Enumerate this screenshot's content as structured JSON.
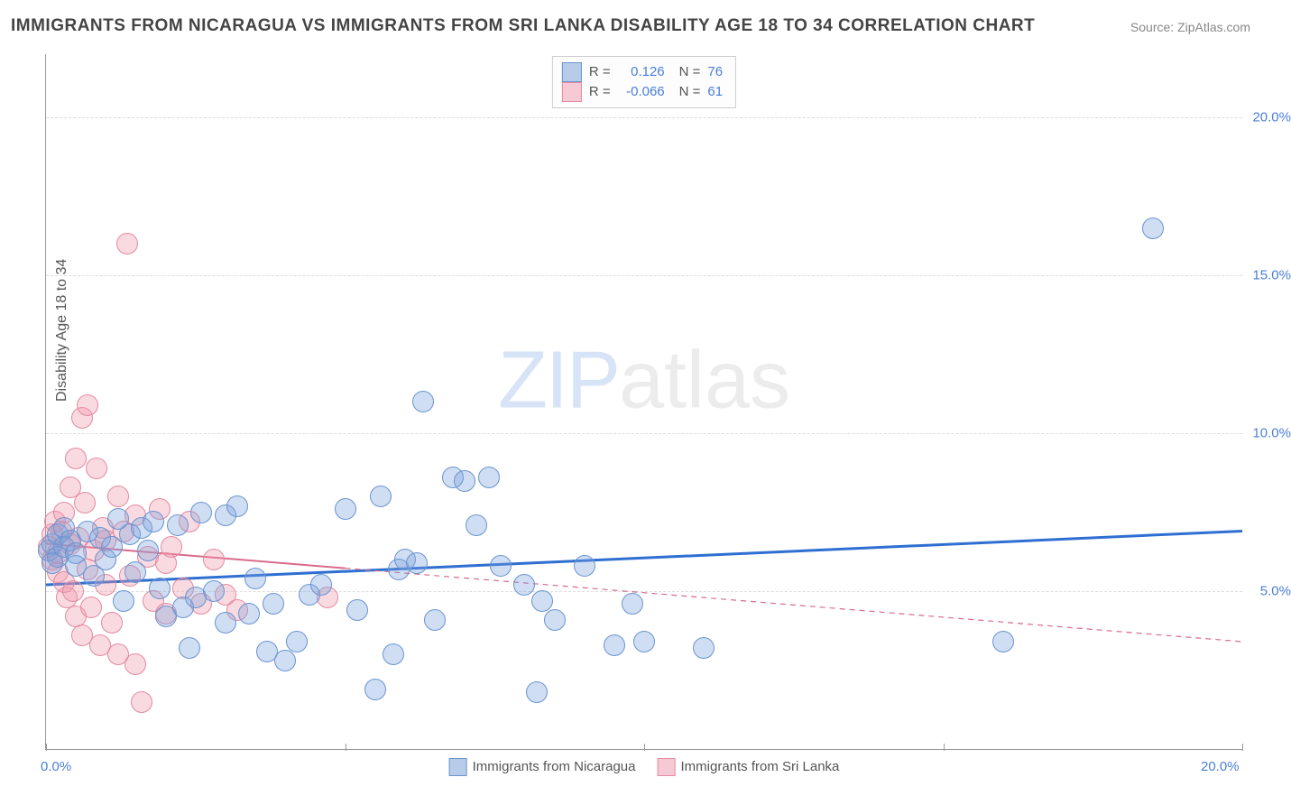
{
  "title": "IMMIGRANTS FROM NICARAGUA VS IMMIGRANTS FROM SRI LANKA DISABILITY AGE 18 TO 34 CORRELATION CHART",
  "source_label": "Source: ZipAtlas.com",
  "ylabel": "Disability Age 18 to 34",
  "watermark_bold": "ZIP",
  "watermark_rest": "atlas",
  "chart": {
    "type": "scatter",
    "xlim": [
      0,
      20
    ],
    "ylim": [
      0,
      22
    ],
    "x_ticks": [
      0,
      5,
      10,
      15,
      20
    ],
    "y_gridlines": [
      5,
      10,
      15,
      20
    ],
    "x_axis_labels": [
      {
        "val": 0,
        "text": "0.0%"
      },
      {
        "val": 20,
        "text": "20.0%"
      }
    ],
    "y_axis_labels": [
      {
        "val": 5,
        "text": "5.0%"
      },
      {
        "val": 10,
        "text": "10.0%"
      },
      {
        "val": 15,
        "text": "15.0%"
      },
      {
        "val": 20,
        "text": "20.0%"
      }
    ],
    "background_color": "#ffffff",
    "grid_color": "#dddddd",
    "series": [
      {
        "name": "Immigrants from Nicaragua",
        "fill_color": "rgba(120,160,220,0.35)",
        "stroke_color": "#6a94d0",
        "swatch_fill": "#b7cce9",
        "swatch_border": "#6a94d0",
        "R": "0.126",
        "N": "76",
        "marker_radius": 11,
        "trend": {
          "x1": 0,
          "y1": 5.2,
          "x2": 20,
          "y2": 6.9,
          "color": "#2e6fd1",
          "width": 3,
          "dash": "none"
        },
        "points": [
          [
            0.05,
            6.3
          ],
          [
            0.1,
            6.5
          ],
          [
            0.1,
            5.9
          ],
          [
            0.2,
            6.1
          ],
          [
            0.2,
            6.8
          ],
          [
            0.3,
            7.0
          ],
          [
            0.3,
            6.4
          ],
          [
            0.4,
            6.6
          ],
          [
            0.5,
            6.2
          ],
          [
            0.5,
            5.8
          ],
          [
            0.7,
            6.9
          ],
          [
            0.8,
            5.5
          ],
          [
            0.9,
            6.7
          ],
          [
            1.0,
            6.0
          ],
          [
            1.1,
            6.4
          ],
          [
            1.2,
            7.3
          ],
          [
            1.3,
            4.7
          ],
          [
            1.4,
            6.8
          ],
          [
            1.5,
            5.6
          ],
          [
            1.6,
            7.0
          ],
          [
            1.7,
            6.3
          ],
          [
            1.8,
            7.2
          ],
          [
            1.9,
            5.1
          ],
          [
            2.0,
            4.2
          ],
          [
            2.2,
            7.1
          ],
          [
            2.3,
            4.5
          ],
          [
            2.4,
            3.2
          ],
          [
            2.5,
            4.8
          ],
          [
            2.6,
            7.5
          ],
          [
            2.8,
            5.0
          ],
          [
            3.0,
            7.4
          ],
          [
            3.0,
            4.0
          ],
          [
            3.2,
            7.7
          ],
          [
            3.4,
            4.3
          ],
          [
            3.5,
            5.4
          ],
          [
            3.7,
            3.1
          ],
          [
            3.8,
            4.6
          ],
          [
            4.0,
            2.8
          ],
          [
            4.2,
            3.4
          ],
          [
            4.4,
            4.9
          ],
          [
            4.6,
            5.2
          ],
          [
            5.0,
            7.6
          ],
          [
            5.2,
            4.4
          ],
          [
            5.5,
            1.9
          ],
          [
            5.6,
            8.0
          ],
          [
            5.8,
            3.0
          ],
          [
            5.9,
            5.7
          ],
          [
            6.0,
            6.0
          ],
          [
            6.2,
            5.9
          ],
          [
            6.3,
            11.0
          ],
          [
            6.5,
            4.1
          ],
          [
            6.8,
            8.6
          ],
          [
            7.0,
            8.5
          ],
          [
            7.2,
            7.1
          ],
          [
            7.4,
            8.6
          ],
          [
            7.6,
            5.8
          ],
          [
            8.0,
            5.2
          ],
          [
            8.2,
            1.8
          ],
          [
            8.3,
            4.7
          ],
          [
            8.5,
            4.1
          ],
          [
            9.0,
            5.8
          ],
          [
            9.5,
            3.3
          ],
          [
            9.8,
            4.6
          ],
          [
            10.0,
            3.4
          ],
          [
            11.0,
            3.2
          ],
          [
            16.0,
            3.4
          ],
          [
            18.5,
            16.5
          ]
        ]
      },
      {
        "name": "Immigrants from Sri Lanka",
        "fill_color": "rgba(240,150,170,0.35)",
        "stroke_color": "#e38aa0",
        "swatch_fill": "#f6cad4",
        "swatch_border": "#e38aa0",
        "R": "-0.066",
        "N": "61",
        "marker_radius": 11,
        "trend": {
          "x1": 0,
          "y1": 6.5,
          "x2": 20,
          "y2": 3.4,
          "color": "#d96a8a",
          "width": 2,
          "dash": "6,5",
          "solid_until_x": 5
        },
        "points": [
          [
            0.05,
            6.4
          ],
          [
            0.1,
            6.0
          ],
          [
            0.1,
            6.8
          ],
          [
            0.15,
            7.2
          ],
          [
            0.2,
            5.6
          ],
          [
            0.2,
            6.2
          ],
          [
            0.25,
            6.9
          ],
          [
            0.3,
            5.3
          ],
          [
            0.3,
            7.5
          ],
          [
            0.35,
            4.8
          ],
          [
            0.4,
            6.5
          ],
          [
            0.4,
            8.3
          ],
          [
            0.45,
            5.0
          ],
          [
            0.5,
            9.2
          ],
          [
            0.5,
            4.2
          ],
          [
            0.55,
            6.7
          ],
          [
            0.6,
            10.5
          ],
          [
            0.6,
            3.6
          ],
          [
            0.65,
            7.8
          ],
          [
            0.7,
            5.7
          ],
          [
            0.7,
            10.9
          ],
          [
            0.75,
            4.5
          ],
          [
            0.8,
            6.3
          ],
          [
            0.85,
            8.9
          ],
          [
            0.9,
            3.3
          ],
          [
            0.95,
            7.0
          ],
          [
            1.0,
            5.2
          ],
          [
            1.0,
            6.6
          ],
          [
            1.1,
            4.0
          ],
          [
            1.2,
            8.0
          ],
          [
            1.2,
            3.0
          ],
          [
            1.3,
            6.9
          ],
          [
            1.35,
            16.0
          ],
          [
            1.4,
            5.5
          ],
          [
            1.5,
            7.4
          ],
          [
            1.5,
            2.7
          ],
          [
            1.6,
            1.5
          ],
          [
            1.7,
            6.1
          ],
          [
            1.8,
            4.7
          ],
          [
            1.9,
            7.6
          ],
          [
            2.0,
            5.9
          ],
          [
            2.0,
            4.3
          ],
          [
            2.1,
            6.4
          ],
          [
            2.3,
            5.1
          ],
          [
            2.4,
            7.2
          ],
          [
            2.6,
            4.6
          ],
          [
            2.8,
            6.0
          ],
          [
            3.0,
            4.9
          ],
          [
            3.2,
            4.4
          ],
          [
            4.7,
            4.8
          ]
        ]
      }
    ],
    "legend_bottom": [
      {
        "label": "Immigrants from Nicaragua",
        "fill": "#b7cce9",
        "border": "#6a94d0"
      },
      {
        "label": "Immigrants from Sri Lanka",
        "fill": "#f6cad4",
        "border": "#e38aa0"
      }
    ]
  }
}
